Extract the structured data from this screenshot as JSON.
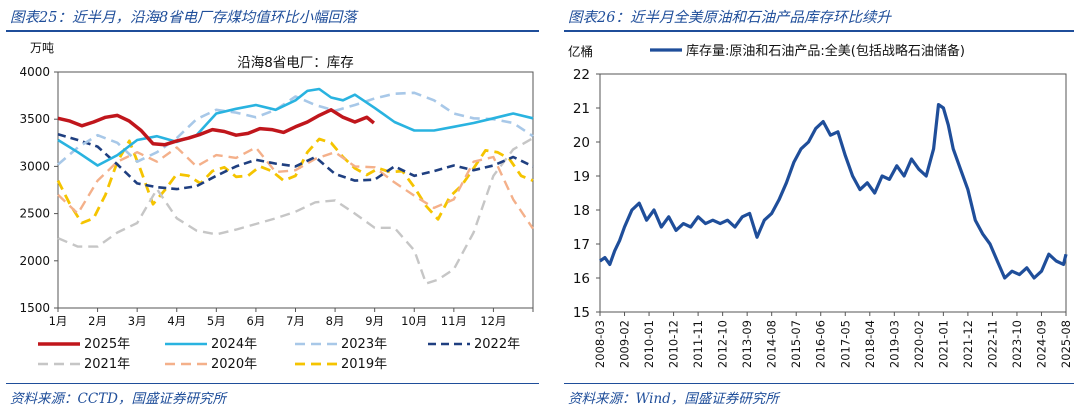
{
  "figures": [
    {
      "title": "图表25：近半月，沿海8省电厂存煤均值环比小幅回落",
      "source": "资料来源：CCTD，国盛证券研究所"
    },
    {
      "title": "图表26：近半月全美原油和石油产品库存环比续升",
      "source": "资料来源：Wind，国盛证券研究所"
    }
  ],
  "chart_data": [
    {
      "type": "line",
      "title": "沿海8省电厂：库存",
      "unit_label": "万吨",
      "x_tick_labels": [
        "1月",
        "2月",
        "3月",
        "4月",
        "5月",
        "6月",
        "7月",
        "8月",
        "9月",
        "10月",
        "11月",
        "12月"
      ],
      "xlim": [
        0,
        12
      ],
      "ylim": [
        1500,
        4000
      ],
      "y_ticks": [
        1500,
        2000,
        2500,
        3000,
        3500,
        4000
      ],
      "legend_position": "bottom",
      "series": [
        {
          "name": "2025年",
          "color": "#c0161c",
          "dash": "solid",
          "width": 3.5,
          "x": [
            0.0,
            0.3,
            0.6,
            0.9,
            1.2,
            1.5,
            1.8,
            2.1,
            2.4,
            2.7,
            3.0,
            3.3,
            3.6,
            3.9,
            4.2,
            4.5,
            4.8,
            5.1,
            5.4,
            5.7,
            6.0,
            6.3,
            6.6,
            6.9,
            7.2,
            7.5,
            7.8,
            7.98
          ],
          "y": [
            3510,
            3480,
            3430,
            3470,
            3520,
            3540,
            3480,
            3380,
            3240,
            3230,
            3270,
            3300,
            3340,
            3390,
            3370,
            3330,
            3350,
            3400,
            3390,
            3360,
            3420,
            3470,
            3540,
            3600,
            3520,
            3470,
            3520,
            3460
          ]
        },
        {
          "name": "2024年",
          "color": "#29b3e0",
          "dash": "solid",
          "width": 2.6,
          "x": [
            0.0,
            0.5,
            1.0,
            1.5,
            2.0,
            2.5,
            3.0,
            3.5,
            4.0,
            4.5,
            5.0,
            5.5,
            6.0,
            6.3,
            6.6,
            6.9,
            7.2,
            7.5,
            8.0,
            8.5,
            9.0,
            9.5,
            10.0,
            10.5,
            11.0,
            11.5,
            12.0
          ],
          "y": [
            3280,
            3150,
            3010,
            3120,
            3280,
            3320,
            3260,
            3330,
            3560,
            3610,
            3650,
            3600,
            3700,
            3800,
            3820,
            3730,
            3700,
            3760,
            3620,
            3470,
            3380,
            3380,
            3420,
            3460,
            3510,
            3560,
            3510
          ]
        },
        {
          "name": "2023年",
          "color": "#a8c8e8",
          "dash": "10,6",
          "width": 2.6,
          "x": [
            0.0,
            0.5,
            1.0,
            1.5,
            2.0,
            2.5,
            3.0,
            3.5,
            4.0,
            4.5,
            5.0,
            5.5,
            6.0,
            6.5,
            7.0,
            7.5,
            8.0,
            8.5,
            9.0,
            9.5,
            10.0,
            10.5,
            11.0,
            11.5,
            12.0
          ],
          "y": [
            3020,
            3200,
            3330,
            3250,
            3050,
            3150,
            3300,
            3500,
            3600,
            3570,
            3520,
            3600,
            3740,
            3650,
            3590,
            3650,
            3720,
            3770,
            3780,
            3700,
            3560,
            3510,
            3500,
            3460,
            3320
          ]
        },
        {
          "name": "2022年",
          "color": "#1f3f80",
          "dash": "8,5",
          "width": 2.6,
          "x": [
            0.0,
            0.5,
            1.0,
            1.5,
            2.0,
            2.5,
            3.0,
            3.5,
            4.0,
            4.5,
            5.0,
            5.5,
            6.0,
            6.5,
            7.0,
            7.5,
            8.0,
            8.5,
            9.0,
            9.5,
            10.0,
            10.5,
            11.0,
            11.5,
            12.0
          ],
          "y": [
            3340,
            3280,
            3210,
            3020,
            2820,
            2780,
            2760,
            2790,
            2900,
            3000,
            3070,
            3030,
            3000,
            3100,
            2920,
            2850,
            2860,
            3000,
            2900,
            2950,
            3010,
            2960,
            3010,
            3100,
            3000
          ]
        },
        {
          "name": "2021年",
          "color": "#c6c6c6",
          "dash": "10,6",
          "width": 2.4,
          "x": [
            0.0,
            0.5,
            1.0,
            1.5,
            2.0,
            2.5,
            3.0,
            3.5,
            4.0,
            4.5,
            5.0,
            5.5,
            6.0,
            6.5,
            7.0,
            7.5,
            8.0,
            8.5,
            9.0,
            9.3,
            9.6,
            10.0,
            10.5,
            11.0,
            11.5,
            12.0
          ],
          "y": [
            2240,
            2150,
            2150,
            2300,
            2400,
            2760,
            2450,
            2320,
            2280,
            2330,
            2390,
            2450,
            2520,
            2620,
            2640,
            2500,
            2350,
            2350,
            2110,
            1760,
            1800,
            1910,
            2300,
            2900,
            3180,
            3300
          ]
        },
        {
          "name": "2020年",
          "color": "#f4b08a",
          "dash": "10,6",
          "width": 2.4,
          "x": [
            0.0,
            0.5,
            1.0,
            1.5,
            2.0,
            2.5,
            3.0,
            3.5,
            4.0,
            4.5,
            5.0,
            5.5,
            6.0,
            6.5,
            7.0,
            7.5,
            8.0,
            8.5,
            9.0,
            9.5,
            10.0,
            10.5,
            11.0,
            11.5,
            12.0
          ],
          "y": [
            2700,
            2500,
            2850,
            3050,
            3150,
            3050,
            3200,
            3000,
            3120,
            3090,
            3200,
            2940,
            2960,
            3080,
            3150,
            3000,
            2990,
            2830,
            2690,
            2560,
            2650,
            3050,
            3100,
            2650,
            2340
          ]
        },
        {
          "name": "2019年",
          "color": "#f5c400",
          "dash": "10,6",
          "width": 2.8,
          "x": [
            0.0,
            0.3,
            0.6,
            0.9,
            1.2,
            1.5,
            1.8,
            2.1,
            2.4,
            2.7,
            3.0,
            3.3,
            3.6,
            3.9,
            4.2,
            4.5,
            4.8,
            5.1,
            5.4,
            5.7,
            6.0,
            6.3,
            6.6,
            6.9,
            7.2,
            7.5,
            7.8,
            8.1,
            8.4,
            8.7,
            9.0,
            9.3,
            9.6,
            9.9,
            10.2,
            10.5,
            10.8,
            11.1,
            11.4,
            11.7,
            12.0
          ],
          "y": [
            2850,
            2600,
            2400,
            2450,
            2700,
            3050,
            3270,
            2950,
            2600,
            2750,
            2920,
            2900,
            2820,
            2950,
            2990,
            2890,
            2900,
            3000,
            2950,
            2850,
            2900,
            3150,
            3290,
            3250,
            3100,
            2980,
            2910,
            2980,
            2940,
            2950,
            2780,
            2580,
            2440,
            2680,
            2800,
            2980,
            3170,
            3150,
            3080,
            2900,
            2850
          ]
        }
      ]
    },
    {
      "type": "line",
      "title": "",
      "unit_label": "亿桶",
      "x_tick_labels": [
        "2008-03",
        "2009-02",
        "2010-01",
        "2010-12",
        "2011-11",
        "2012-10",
        "2013-09",
        "2014-08",
        "2015-07",
        "2016-06",
        "2017-05",
        "2018-04",
        "2019-03",
        "2020-02",
        "2021-01",
        "2021-12",
        "2022-11",
        "2023-10",
        "2024-09",
        "2025-08"
      ],
      "xlim": [
        0,
        19
      ],
      "ylim": [
        15,
        22
      ],
      "y_ticks": [
        15,
        16,
        17,
        18,
        19,
        20,
        21,
        22
      ],
      "legend_position": "top-right",
      "series": [
        {
          "name": "库存量:原油和石油产品:全美(包括战略石油储备)",
          "color": "#1f4e9a",
          "dash": "solid",
          "width": 3.2,
          "x": [
            0.0,
            0.2,
            0.4,
            0.6,
            0.8,
            1.0,
            1.3,
            1.6,
            1.9,
            2.2,
            2.5,
            2.8,
            3.1,
            3.4,
            3.7,
            4.0,
            4.3,
            4.6,
            4.9,
            5.2,
            5.5,
            5.8,
            6.1,
            6.4,
            6.7,
            7.0,
            7.3,
            7.6,
            7.9,
            8.2,
            8.5,
            8.8,
            9.1,
            9.4,
            9.7,
            10.0,
            10.3,
            10.6,
            10.9,
            11.2,
            11.5,
            11.8,
            12.1,
            12.4,
            12.7,
            13.0,
            13.3,
            13.6,
            13.8,
            14.0,
            14.2,
            14.4,
            14.7,
            15.0,
            15.3,
            15.6,
            15.9,
            16.2,
            16.5,
            16.8,
            17.1,
            17.4,
            17.7,
            18.0,
            18.3,
            18.6,
            18.9,
            19.0
          ],
          "y": [
            16.5,
            16.6,
            16.4,
            16.8,
            17.1,
            17.5,
            18.0,
            18.2,
            17.7,
            18.0,
            17.5,
            17.8,
            17.4,
            17.6,
            17.5,
            17.8,
            17.6,
            17.7,
            17.6,
            17.7,
            17.5,
            17.8,
            17.9,
            17.2,
            17.7,
            17.9,
            18.3,
            18.8,
            19.4,
            19.8,
            20.0,
            20.4,
            20.6,
            20.2,
            20.3,
            19.6,
            19.0,
            18.6,
            18.8,
            18.5,
            19.0,
            18.9,
            19.3,
            19.0,
            19.5,
            19.2,
            19.0,
            19.8,
            21.1,
            21.0,
            20.5,
            19.8,
            19.2,
            18.6,
            17.7,
            17.3,
            17.0,
            16.5,
            16.0,
            16.2,
            16.1,
            16.3,
            16.0,
            16.2,
            16.7,
            16.5,
            16.4,
            16.7
          ]
        }
      ]
    }
  ]
}
